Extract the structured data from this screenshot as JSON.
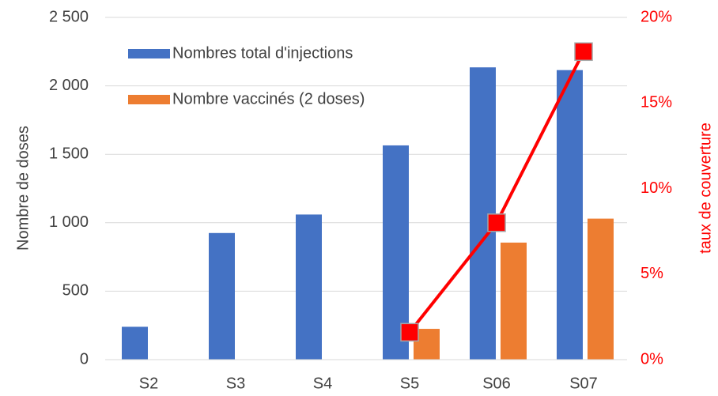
{
  "chart_data": {
    "type": "bar",
    "categories": [
      "S2",
      "S3",
      "S4",
      "S5",
      "S06",
      "S07"
    ],
    "series": [
      {
        "name": "Nombres total d'injections",
        "color": "#4472c4",
        "values": [
          240,
          925,
          1060,
          1565,
          2135,
          2115
        ]
      },
      {
        "name": "Nombre vaccinés (2 doses)",
        "color": "#ed7d31",
        "values": [
          null,
          null,
          null,
          225,
          855,
          1030
        ]
      },
      {
        "type": "line",
        "axis": "y2",
        "color": "#ff0000",
        "values": [
          null,
          null,
          null,
          1.6,
          8,
          18
        ]
      }
    ],
    "ylabel": "Nombre de doses",
    "y2label": "taux de couverture",
    "ylim": [
      0,
      2500
    ],
    "yticks": [
      0,
      500,
      {
        "value": 1000,
        "label": "1 000"
      },
      {
        "value": 1500,
        "label": "1 500"
      },
      {
        "value": 2000,
        "label": "2 000"
      },
      {
        "value": 2500,
        "label": "2 500"
      }
    ],
    "y2lim": [
      0,
      20
    ],
    "y2ticks": [
      {
        "value": 0,
        "label": "0%"
      },
      {
        "value": 5,
        "label": "5%"
      },
      {
        "value": 10,
        "label": "10%"
      },
      {
        "value": 15,
        "label": "15%"
      },
      {
        "value": 20,
        "label": "20%"
      }
    ],
    "y2color": "#ff0000",
    "grid": true
  }
}
